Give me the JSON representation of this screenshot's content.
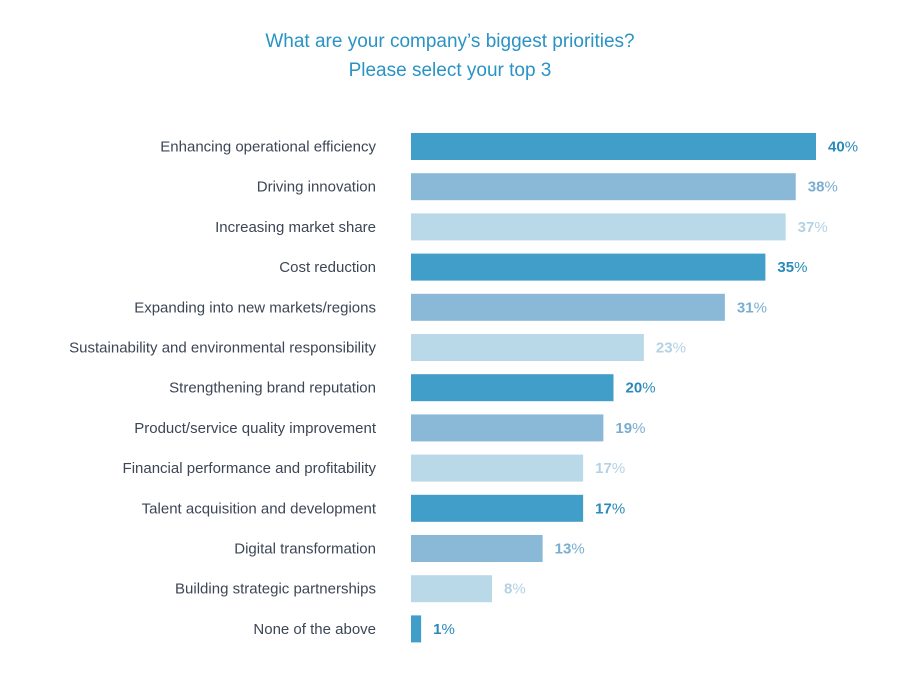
{
  "chart_data": {
    "type": "bar",
    "orientation": "horizontal",
    "title": "What are your company’s biggest priorities?",
    "subtitle": "Please select your top 3",
    "categories": [
      "Enhancing operational efficiency",
      "Driving innovation",
      "Increasing market share",
      "Cost reduction",
      "Expanding into new markets/regions",
      "Sustainability and environmental responsibility",
      "Strengthening brand reputation",
      "Product/service quality improvement",
      "Financial performance and profitability",
      "Talent acquisition and development",
      "Digital transformation",
      "Building strategic partnerships",
      "None of the above"
    ],
    "values": [
      40,
      38,
      37,
      35,
      31,
      23,
      20,
      19,
      17,
      17,
      13,
      8,
      1
    ],
    "value_suffix": "%",
    "xlim": [
      0,
      40
    ],
    "grid": false,
    "bar_colors": [
      "#409ec9",
      "#8ab9d8",
      "#b9d8e8"
    ],
    "label_colors": [
      "#2a8ab9",
      "#7aaed1",
      "#b3d2e4"
    ]
  }
}
